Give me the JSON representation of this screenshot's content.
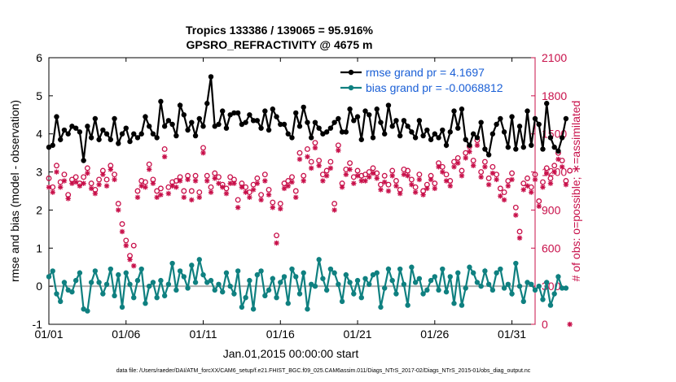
{
  "chart_data": {
    "type": "line",
    "title": "Tropics 133386 / 139065 = 95.916%",
    "subtitle": "GPSRO_REFRACTIVITY @ 4675 m",
    "ylabel_left": "rmse and bias (model - observation)",
    "ylabel_right": "# of obs: o=possible; ∗=assimilated",
    "xlabel": "Jan.01,2015 00:00:00 start",
    "footer": "data file: /Users/raeder/DAI/ATM_forcXX/CAM6_setup/f.e21.FHIST_BGC.f09_025.CAM6assim.011/Diags_NTrS_2017-02/Diags_NTrS_2015-01/obs_diag_output.nc",
    "xlim": [
      1,
      32.5
    ],
    "ylim_left": [
      -1,
      6
    ],
    "ylim_right": [
      0,
      2100
    ],
    "x_ticks": [
      1,
      6,
      11,
      16,
      21,
      26,
      31
    ],
    "x_tick_labels": [
      "01/01",
      "01/06",
      "01/11",
      "01/16",
      "01/21",
      "01/26",
      "01/31"
    ],
    "y_ticks_left": [
      -1,
      0,
      1,
      2,
      3,
      4,
      5,
      6
    ],
    "y_ticks_right": [
      0,
      300,
      600,
      900,
      1200,
      1500,
      1800,
      2100
    ],
    "zero_line": 0,
    "colors": {
      "rmse": "#000000",
      "bias": "#0f8080",
      "obs": "#c8104a",
      "zero": "#b0b0b0",
      "legend_text": "#1a5fd6"
    },
    "x_start": 1.0,
    "x_step": 0.25,
    "series": [
      {
        "name": "rmse grand pr = 4.1697",
        "axis": "left",
        "values": [
          3.65,
          3.7,
          4.45,
          3.85,
          4.1,
          4.0,
          4.2,
          4.15,
          4.05,
          3.3,
          4.2,
          3.9,
          4.4,
          3.85,
          4.1,
          4.0,
          3.85,
          4.4,
          3.75,
          4.0,
          4.15,
          3.8,
          4.0,
          3.9,
          4.0,
          4.45,
          4.2,
          4.0,
          3.9,
          4.85,
          4.2,
          4.35,
          4.25,
          3.95,
          4.75,
          4.5,
          4.1,
          4.3,
          3.95,
          4.4,
          4.2,
          4.8,
          5.5,
          4.2,
          4.25,
          4.6,
          4.15,
          4.5,
          4.55,
          4.55,
          4.25,
          4.3,
          4.5,
          4.35,
          4.35,
          4.15,
          4.6,
          4.1,
          4.65,
          4.45,
          4.25,
          4.25,
          4.0,
          3.9,
          4.55,
          4.2,
          4.7,
          4.3,
          3.9,
          4.3,
          4.15,
          4.0,
          4.05,
          4.15,
          4.3,
          4.4,
          4.05,
          4.05,
          4.65,
          4.35,
          4.45,
          3.85,
          4.6,
          4.5,
          3.9,
          4.65,
          4.3,
          4.0,
          4.75,
          4.2,
          4.35,
          3.95,
          4.35,
          4.2,
          4.05,
          3.9,
          4.35,
          3.95,
          4.1,
          3.85,
          4.0,
          3.9,
          4.1,
          3.7,
          4.05,
          4.6,
          4.15,
          4.65,
          3.85,
          3.7,
          4.0,
          3.9,
          4.3,
          3.6,
          3.45,
          4.0,
          4.25,
          4.4,
          4.05,
          3.65,
          4.45,
          3.6,
          4.2,
          3.65,
          4.6,
          3.7,
          4.4,
          4.25,
          3.6,
          4.8,
          3.9,
          3.65,
          3.55,
          3.9,
          4.4
        ]
      },
      {
        "name": "bias grand pr = -0.0068812",
        "axis": "left",
        "values": [
          0.25,
          0.4,
          -0.2,
          -0.4,
          0.1,
          -0.1,
          -0.15,
          0.15,
          0.35,
          -0.6,
          -0.65,
          0.1,
          0.4,
          0.1,
          -0.2,
          0.05,
          0.45,
          -0.25,
          0.3,
          -0.55,
          0.35,
          0.05,
          -0.3,
          0.15,
          0.45,
          -0.45,
          0.0,
          0.1,
          -0.3,
          0.15,
          -0.25,
          0.05,
          0.6,
          -0.1,
          0.4,
          0.25,
          -0.05,
          0.55,
          0.1,
          0.7,
          0.3,
          0.1,
          0.15,
          -0.1,
          0.05,
          -0.15,
          0.35,
          0.0,
          -0.2,
          0.4,
          -0.55,
          -0.3,
          0.15,
          -0.6,
          0.3,
          0.4,
          -0.25,
          -0.1,
          0.2,
          -0.3,
          0.1,
          0.25,
          -0.45,
          0.45,
          0.25,
          -0.2,
          0.35,
          -0.6,
          0.05,
          0.0,
          0.7,
          0.2,
          -0.1,
          0.45,
          0.35,
          0.05,
          -0.4,
          0.3,
          0.1,
          -0.2,
          0.15,
          -0.3,
          0.2,
          0.05,
          0.3,
          0.35,
          -0.55,
          -0.05,
          0.45,
          0.15,
          -0.2,
          0.45,
          0.05,
          -0.5,
          0.5,
          0.1,
          0.2,
          -0.2,
          -0.1,
          0.15,
          0.25,
          -0.1,
          0.45,
          -0.15,
          0.25,
          -0.45,
          0.35,
          -0.5,
          -0.05,
          0.5,
          0.35,
          0.1,
          0.0,
          0.4,
          0.05,
          -0.1,
          0.35,
          0.45,
          -0.05,
          0.05,
          -0.2,
          0.6,
          0.0,
          -0.4,
          0.1,
          0.05,
          -0.1,
          0.0,
          -0.35,
          0.1,
          -0.5,
          -0.2,
          0.25,
          -0.05,
          -0.05
        ]
      }
    ],
    "obs_possible": [
      1150,
      1080,
      1250,
      1120,
      1180,
      1020,
      1140,
      1160,
      1110,
      1160,
      1230,
      1110,
      1060,
      1140,
      1210,
      1140,
      1250,
      1180,
      950,
      790,
      660,
      540,
      620,
      1050,
      1130,
      1120,
      1260,
      1140,
      1050,
      1070,
      1380,
      1080,
      1120,
      1130,
      1160,
      1050,
      1170,
      1050,
      1170,
      1040,
      1390,
      1170,
      1080,
      1190,
      1160,
      1100,
      1070,
      1160,
      1140,
      980,
      1110,
      1080,
      1040,
      1100,
      1150,
      1020,
      1180,
      1060,
      960,
      700,
      950,
      1110,
      1130,
      1160,
      1050,
      1350,
      1170,
      1380,
      1280,
      1430,
      1290,
      1180,
      1210,
      1280,
      950,
      1410,
      1110,
      1220,
      1270,
      1160,
      1210,
      1170,
      1180,
      1200,
      1230,
      1190,
      1100,
      1170,
      1100,
      1210,
      1130,
      1060,
      1220,
      1210,
      1140,
      1080,
      1180,
      1050,
      1100,
      1170,
      1110,
      1270,
      1240,
      1180,
      1130,
      1280,
      1310,
      1210,
      1350,
      1400,
      1290,
      1450,
      1200,
      1280,
      1150,
      1240,
      1180,
      1070,
      1040,
      1130,
      1190,
      920,
      730,
      1110,
      1150,
      1080,
      1180,
      970,
      1120,
      1230,
      1150,
      1250,
      1350,
      1290,
      1130,
      1210
    ],
    "obs_assimilated": [
      1080,
      1040,
      1200,
      1080,
      1130,
      990,
      1110,
      1120,
      1090,
      1110,
      1190,
      1070,
      1030,
      1100,
      1180,
      1090,
      1220,
      1140,
      900,
      730,
      620,
      510,
      460,
      1000,
      1090,
      1080,
      1220,
      1110,
      1000,
      1020,
      1320,
      1030,
      1090,
      1080,
      1130,
      1000,
      1140,
      980,
      1130,
      1000,
      1350,
      1130,
      1040,
      1150,
      1110,
      1080,
      1030,
      1110,
      1110,
      920,
      1080,
      1040,
      1000,
      1060,
      1110,
      980,
      1130,
      1020,
      920,
      640,
      910,
      1070,
      1090,
      1120,
      1000,
      1300,
      1130,
      1320,
      1230,
      1390,
      1250,
      1130,
      1170,
      1230,
      900,
      1370,
      1080,
      1180,
      1220,
      1110,
      1170,
      1130,
      1130,
      1160,
      1190,
      1150,
      1060,
      1120,
      1050,
      1170,
      1090,
      1030,
      1180,
      1170,
      1100,
      1040,
      1140,
      1020,
      1070,
      1140,
      1070,
      1240,
      1200,
      1130,
      1090,
      1240,
      1270,
      1170,
      1310,
      1360,
      1250,
      1410,
      1160,
      1240,
      1100,
      1190,
      1140,
      1010,
      980,
      1090,
      1140,
      860,
      680,
      1060,
      1090,
      1040,
      1140,
      930,
      1080,
      1190,
      1110,
      1200,
      1300,
      1240,
      1100,
      0
    ],
    "legend_position": "top-right"
  }
}
